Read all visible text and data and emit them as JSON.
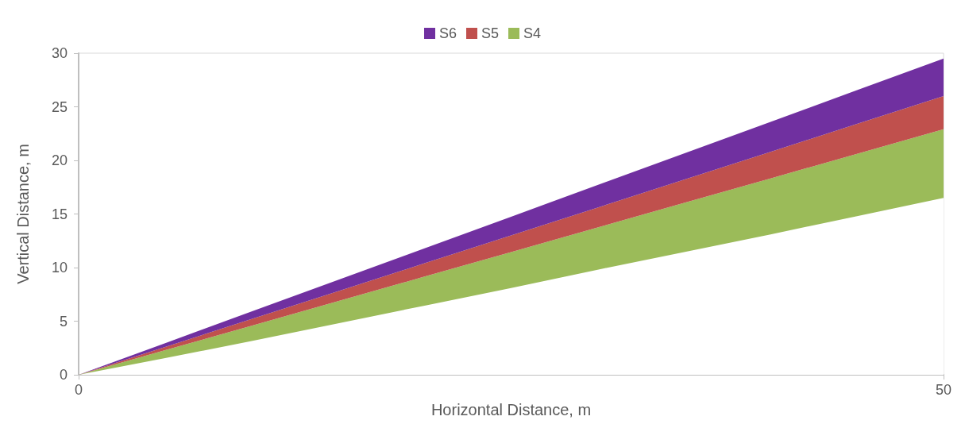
{
  "chart_data": {
    "type": "area",
    "stacked": true,
    "xlabel": "Horizontal Distance, m",
    "ylabel": "Vertical Distance, m",
    "x": [
      0,
      5,
      10,
      15,
      20,
      25,
      30,
      35,
      40,
      45,
      50
    ],
    "xlim": [
      0,
      50
    ],
    "xticks": [
      0,
      50
    ],
    "ylim": [
      0,
      30
    ],
    "yticks": [
      0,
      5,
      10,
      15,
      20,
      25,
      30
    ],
    "grid": false,
    "legend": "top",
    "series": [
      {
        "color": "#ffffff",
        "values": [
          0,
          1.55,
          3.15,
          4.8,
          6.45,
          8.1,
          9.8,
          11.45,
          13.1,
          14.8,
          16.5
        ]
      },
      {
        "name": "S4",
        "color": "#9bbb59",
        "values": [
          0,
          0.74,
          1.43,
          2.07,
          2.71,
          3.35,
          3.94,
          4.58,
          5.22,
          5.81,
          6.4
        ]
      },
      {
        "name": "S5",
        "color": "#c0504d",
        "values": [
          0,
          0.31,
          0.62,
          0.93,
          1.24,
          1.55,
          1.86,
          2.17,
          2.48,
          2.79,
          3.1
        ]
      },
      {
        "name": "S6",
        "color": "#7030a0",
        "values": [
          0,
          0.35,
          0.7,
          1.05,
          1.4,
          1.75,
          2.1,
          2.45,
          2.8,
          3.15,
          3.5
        ]
      }
    ]
  }
}
